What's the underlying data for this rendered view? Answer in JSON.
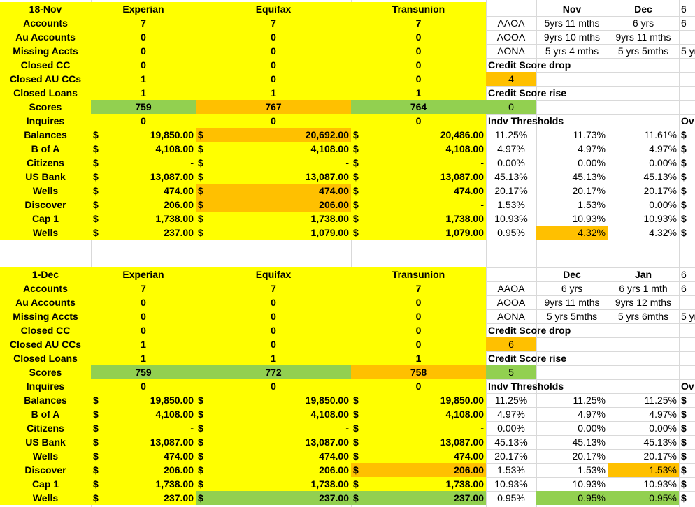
{
  "colors": {
    "yellow": "#ffff00",
    "orange": "#ffc000",
    "green": "#92d050"
  },
  "blocks": [
    {
      "date": "18-Nov",
      "bureaus": [
        "Experian",
        "Equifax",
        "Transunion"
      ],
      "labels": [
        "Accounts",
        "Au Accounts",
        "Missing Accts",
        "Closed CC",
        "Closed AU CCs",
        "Closed Loans",
        "Scores",
        "Inquires",
        "Balances",
        "B of A",
        "Citizens",
        "US Bank",
        "Wells",
        "Discover",
        "Cap 1",
        "Wells"
      ],
      "cols": [
        [
          "7",
          "0",
          "0",
          "0",
          "1",
          "1",
          "759",
          "0",
          "19,850.00",
          "4,108.00",
          "-",
          "13,087.00",
          "474.00",
          "206.00",
          "1,738.00",
          "237.00"
        ],
        [
          "7",
          "0",
          "0",
          "0",
          "0",
          "1",
          "767",
          "0",
          "20,692.00",
          "4,108.00",
          "-",
          "13,087.00",
          "474.00",
          "206.00",
          "1,738.00",
          "1,079.00"
        ],
        [
          "7",
          "0",
          "0",
          "0",
          "0",
          "1",
          "764",
          "0",
          "20,486.00",
          "4,108.00",
          "-",
          "13,087.00",
          "474.00",
          "-",
          "1,738.00",
          "1,079.00"
        ]
      ],
      "scoreFill": [
        "green",
        "orange",
        "green"
      ],
      "highlights": [
        [
          1,
          8
        ],
        [
          1,
          12
        ],
        [
          1,
          13
        ]
      ],
      "right": {
        "hdr": [
          "Nov",
          "Dec",
          "6"
        ],
        "ages": [
          [
            "AAOA",
            "5yrs 11 mths",
            "6 yrs",
            "6"
          ],
          [
            "AOOA",
            "9yrs 10 mths",
            "9yrs 11 mths",
            ""
          ],
          [
            "AONA",
            "5 yrs 4 mths",
            "5 yrs 5mths",
            "5 yr"
          ]
        ],
        "drop_label": "Credit Score drop",
        "drop_val": "4",
        "drop_fill": "orange",
        "rise_label": "Credit Score rise",
        "rise_val": "0",
        "rise_fill": "green",
        "thresh_label": "Indv Thresholds",
        "ov": "Ov",
        "thresholds": [
          [
            "11.25%",
            "11.73%",
            "11.61%"
          ],
          [
            "4.97%",
            "4.97%",
            "4.97%"
          ],
          [
            "0.00%",
            "0.00%",
            "0.00%"
          ],
          [
            "45.13%",
            "45.13%",
            "45.13%"
          ],
          [
            "20.17%",
            "20.17%",
            "20.17%"
          ],
          [
            "1.53%",
            "1.53%",
            "0.00%"
          ],
          [
            "10.93%",
            "10.93%",
            "10.93%"
          ],
          [
            "0.95%",
            "4.32%",
            "4.32%"
          ]
        ],
        "thHighlights": [
          [
            7,
            1,
            "orange"
          ]
        ]
      }
    },
    {
      "date": "1-Dec",
      "bureaus": [
        "Experian",
        "Equifax",
        "Transunion"
      ],
      "labels": [
        "Accounts",
        "Au Accounts",
        "Missing Accts",
        "Closed CC",
        "Closed AU CCs",
        "Closed Loans",
        "Scores",
        "Inquires",
        "Balances",
        "B of A",
        "Citizens",
        "US Bank",
        "Wells",
        "Discover",
        "Cap 1",
        "Wells"
      ],
      "cols": [
        [
          "7",
          "0",
          "0",
          "0",
          "1",
          "1",
          "759",
          "0",
          "19,850.00",
          "4,108.00",
          "-",
          "13,087.00",
          "474.00",
          "206.00",
          "1,738.00",
          "237.00"
        ],
        [
          "7",
          "0",
          "0",
          "0",
          "0",
          "1",
          "772",
          "0",
          "19,850.00",
          "4,108.00",
          "-",
          "13,087.00",
          "474.00",
          "206.00",
          "1,738.00",
          "237.00"
        ],
        [
          "7",
          "0",
          "0",
          "0",
          "0",
          "1",
          "758",
          "0",
          "19,850.00",
          "4,108.00",
          "-",
          "13,087.00",
          "474.00",
          "206.00",
          "1,738.00",
          "237.00"
        ]
      ],
      "scoreFill": [
        "green",
        "green",
        "orange"
      ],
      "highlights": [
        [
          2,
          13
        ],
        [
          1,
          15
        ],
        [
          2,
          15
        ]
      ],
      "right": {
        "hdr": [
          "Dec",
          "Jan",
          "6"
        ],
        "ages": [
          [
            "AAOA",
            "6 yrs",
            "6 yrs 1 mth",
            "6"
          ],
          [
            "AOOA",
            "9yrs 11 mths",
            "9yrs 12 mths",
            ""
          ],
          [
            "AONA",
            "5 yrs 5mths",
            "5 yrs 6mths",
            "5 yr"
          ]
        ],
        "drop_label": "Credit Score drop",
        "drop_val": "6",
        "drop_fill": "orange",
        "rise_label": "Credit Score rise",
        "rise_val": "5",
        "rise_fill": "green",
        "thresh_label": "Indv Thresholds",
        "ov": "Ov",
        "thresholds": [
          [
            "11.25%",
            "11.25%",
            "11.25%"
          ],
          [
            "4.97%",
            "4.97%",
            "4.97%"
          ],
          [
            "0.00%",
            "0.00%",
            "0.00%"
          ],
          [
            "45.13%",
            "45.13%",
            "45.13%"
          ],
          [
            "20.17%",
            "20.17%",
            "20.17%"
          ],
          [
            "1.53%",
            "1.53%",
            "1.53%"
          ],
          [
            "10.93%",
            "10.93%",
            "10.93%"
          ],
          [
            "0.95%",
            "0.95%",
            "0.95%"
          ]
        ],
        "thHighlights": [
          [
            5,
            2,
            "orange"
          ],
          [
            7,
            1,
            "green"
          ],
          [
            7,
            2,
            "green"
          ]
        ]
      }
    }
  ],
  "currency": "$"
}
